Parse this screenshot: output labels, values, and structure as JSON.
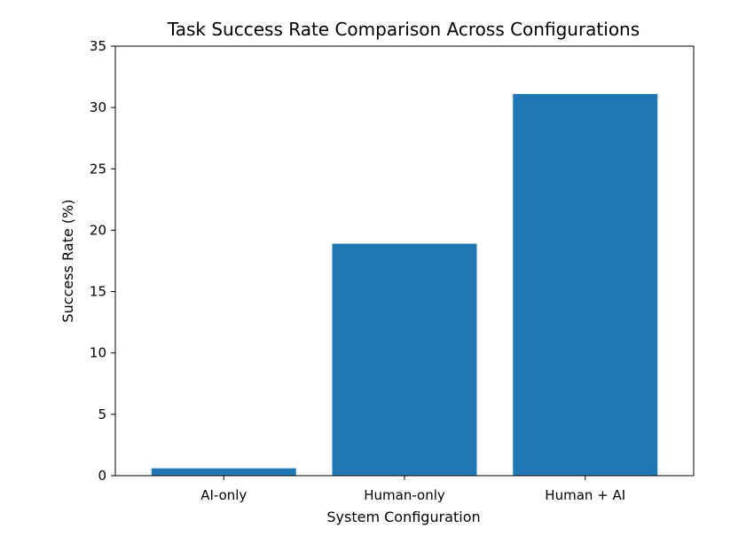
{
  "chart_data": {
    "type": "bar",
    "title": "Task Success Rate Comparison Across Configurations",
    "xlabel": "System Configuration",
    "ylabel": "Success Rate (%)",
    "categories": [
      "AI-only",
      "Human-only",
      "Human + AI"
    ],
    "values": [
      0.6,
      18.9,
      31.1
    ],
    "ylim": [
      0,
      35
    ],
    "yticks": [
      0,
      5,
      10,
      15,
      20,
      25,
      30,
      35
    ],
    "grid": false,
    "bar_color": "#1f77b4"
  }
}
